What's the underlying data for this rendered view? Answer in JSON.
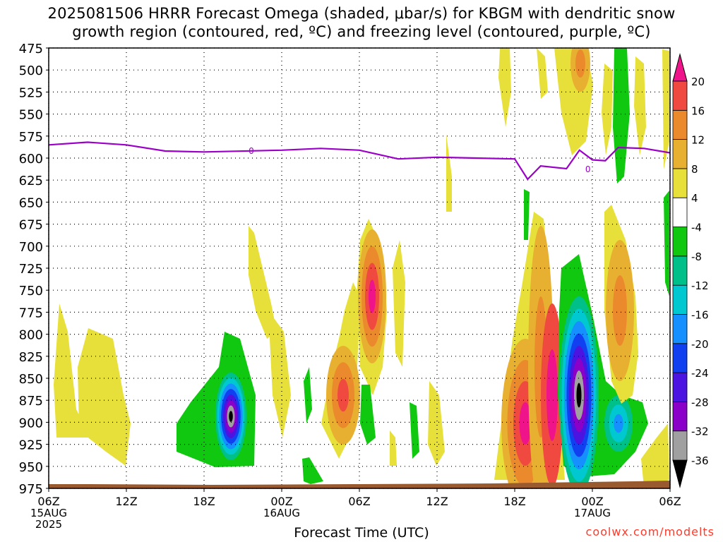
{
  "title_lines": [
    "2025081506 HRRR Forecast Omega (shaded, μbar/s) for KBGM with dendritic snow",
    "growth region (contoured, red, ºC) and freezing level (contoured, purple, ºC)"
  ],
  "xaxis_title": "Forecast Time (UTC)",
  "credit": "coolwx.com/modelts",
  "chart_data": {
    "type": "heatmap",
    "y_axis": {
      "quantity": "pressure (hPa)",
      "range": [
        475,
        975
      ],
      "inverted": true,
      "ticks": [
        475,
        500,
        525,
        550,
        575,
        600,
        625,
        650,
        675,
        700,
        725,
        750,
        775,
        800,
        825,
        850,
        875,
        900,
        925,
        950,
        975
      ]
    },
    "x_axis": {
      "quantity": "forecast time (UTC)",
      "range": [
        "2025-08-15 06Z",
        "2025-08-17 06Z"
      ],
      "ticks": [
        {
          "t": "2025-08-15 06Z",
          "label": "06Z",
          "sub": [
            "15AUG",
            "2025"
          ]
        },
        {
          "t": "2025-08-15 12Z",
          "label": "12Z",
          "sub": []
        },
        {
          "t": "2025-08-15 18Z",
          "label": "18Z",
          "sub": []
        },
        {
          "t": "2025-08-16 00Z",
          "label": "00Z",
          "sub": [
            "16AUG"
          ]
        },
        {
          "t": "2025-08-16 06Z",
          "label": "06Z",
          "sub": []
        },
        {
          "t": "2025-08-16 12Z",
          "label": "12Z",
          "sub": []
        },
        {
          "t": "2025-08-16 18Z",
          "label": "18Z",
          "sub": []
        },
        {
          "t": "2025-08-17 00Z",
          "label": "00Z",
          "sub": [
            "17AUG"
          ]
        },
        {
          "t": "2025-08-17 06Z",
          "label": "06Z",
          "sub": []
        }
      ]
    },
    "grid": true,
    "colorbar": {
      "levels": [
        -36,
        -32,
        -28,
        -24,
        -20,
        -16,
        -12,
        -8,
        -4,
        4,
        8,
        12,
        16,
        20
      ],
      "colors": [
        "#000000",
        "#a0a0a0",
        "#8a00c8",
        "#4b14e0",
        "#1040f0",
        "#1690ff",
        "#00c8d0",
        "#00c08a",
        "#10c810",
        "#ffffff",
        "#e8e03a",
        "#e8b030",
        "#ea8a2c",
        "#f04a40",
        "#f0148a"
      ]
    },
    "freezing_level_hPa": {
      "t": [
        "2025-08-15 06Z",
        "2025-08-15 09Z",
        "2025-08-15 12Z",
        "2025-08-15 15Z",
        "2025-08-15 18Z",
        "2025-08-16 00Z",
        "2025-08-16 03Z",
        "2025-08-16 06Z",
        "2025-08-16 09Z",
        "2025-08-16 12Z",
        "2025-08-16 15Z",
        "2025-08-16 18Z",
        "2025-08-16 19Z",
        "2025-08-16 20Z",
        "2025-08-16 22Z",
        "2025-08-16 23Z",
        "2025-08-17 00Z",
        "2025-08-17 01Z",
        "2025-08-17 02Z",
        "2025-08-17 04Z",
        "2025-08-17 06Z"
      ],
      "p": [
        585,
        582,
        585,
        592,
        593,
        591,
        589,
        591,
        601,
        599,
        600,
        601,
        624,
        609,
        612,
        591,
        602,
        603,
        588,
        589,
        594
      ]
    },
    "dgz_label": "0",
    "features": [
      {
        "name": "lift-cell-0730Z-16AUG",
        "peak": 20,
        "t_center": "2025-08-16 07:30Z",
        "p_range": [
          660,
          805
        ]
      },
      {
        "name": "lift-cell-19Z-16AUG",
        "peak": 20,
        "t_center": "2025-08-16 19:00Z",
        "p_range": [
          800,
          960
        ]
      },
      {
        "name": "lift-cell-21Z-16AUG",
        "peak": 20,
        "t_center": "2025-08-16 21:00Z",
        "p_range": [
          720,
          960
        ]
      },
      {
        "name": "sink-cell-20Z-15AUG",
        "peak": -36,
        "t_center": "2025-08-15 20:00Z",
        "p_range": [
          750,
          960
        ]
      },
      {
        "name": "sink-cell-23Z-16AUG",
        "peak": -36,
        "t_center": "2025-08-16 23:00Z",
        "p_range": [
          680,
          960
        ]
      },
      {
        "name": "lift-cell-02Z-17AUG",
        "peak": 16,
        "t_center": "2025-08-17 02:00Z",
        "p_range": [
          640,
          820
        ]
      }
    ]
  }
}
